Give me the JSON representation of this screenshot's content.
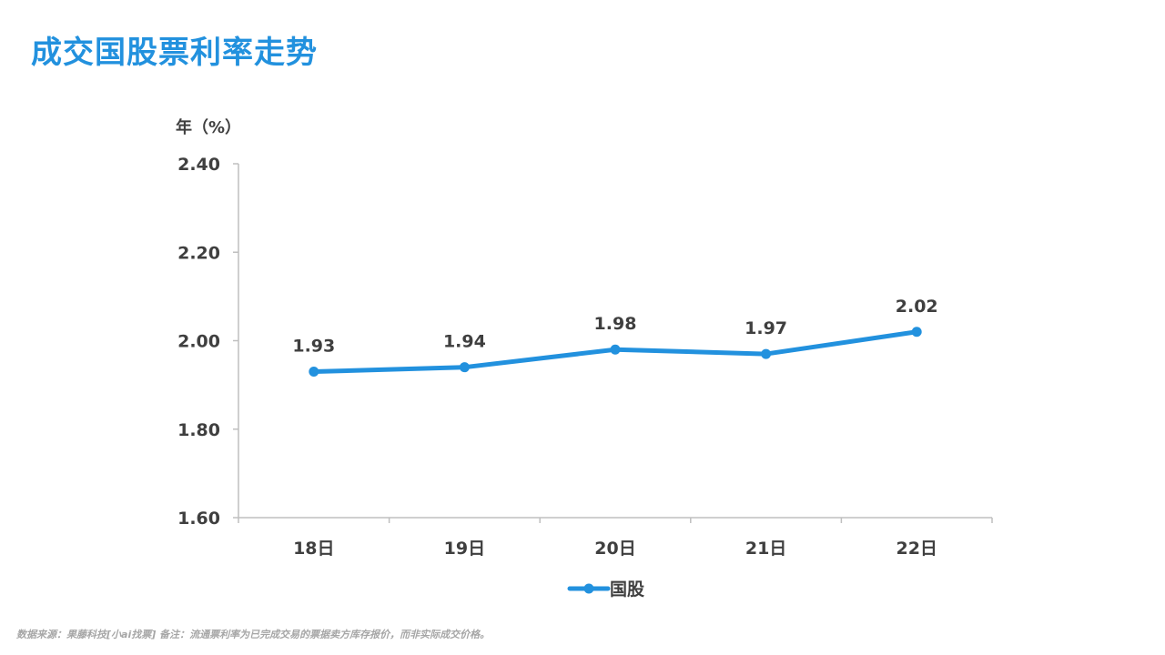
{
  "page": {
    "title": "成交国股票利率走势",
    "footnote": "数据来源：果藤科技[小ai找票] 备注：流通票利率为已完成交易的票据卖方库存报价，而非实际成交价格。"
  },
  "colors": {
    "accent": "#2291DE",
    "axis_text": "#3F3F3F",
    "axis_line": "#BFBFBF",
    "footnote": "#A6A6A6"
  },
  "chart_data": {
    "type": "line",
    "ylabel": "年（%）",
    "categories": [
      "18日",
      "19日",
      "20日",
      "21日",
      "22日"
    ],
    "series": [
      {
        "name": "国股",
        "values": [
          1.93,
          1.94,
          1.98,
          1.97,
          2.02
        ],
        "labels": [
          "1.93",
          "1.94",
          "1.98",
          "1.97",
          "2.02"
        ],
        "color": "#2291DE"
      }
    ],
    "ylim": [
      1.6,
      2.4
    ],
    "yticks": [
      "1.60",
      "1.80",
      "2.00",
      "2.20",
      "2.40"
    ],
    "legend_position": "bottom",
    "grid": false
  }
}
